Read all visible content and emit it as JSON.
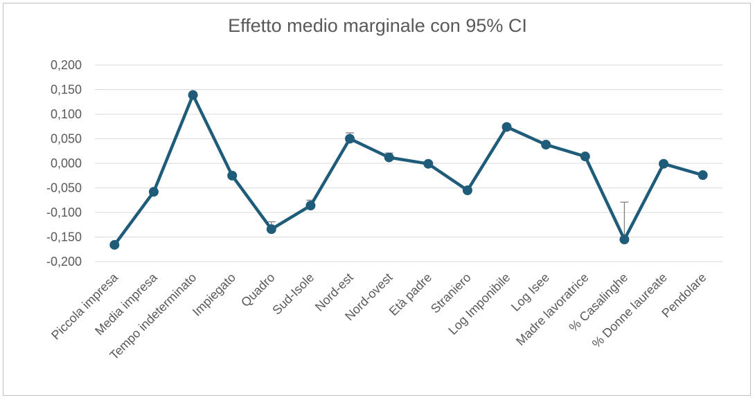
{
  "chart_data": {
    "type": "line",
    "title": "Effetto medio marginale con 95% CI",
    "xlabel": "",
    "ylabel": "",
    "ylim": [
      -0.2,
      0.2
    ],
    "yticks": [
      "0,200",
      "0,150",
      "0,100",
      "0,050",
      "0,000",
      "-0,050",
      "-0,100",
      "-0,150",
      "-0,200"
    ],
    "ytick_values": [
      0.2,
      0.15,
      0.1,
      0.05,
      0.0,
      -0.05,
      -0.1,
      -0.15,
      -0.2
    ],
    "grid": true,
    "legend": "none",
    "categories": [
      "Piccola impresa",
      "Media impresa",
      "Tempo indeterminato",
      "Impiegato",
      "Quadro",
      "Sud-Isole",
      "Nord-est",
      "Nord-ovest",
      "Età padre",
      "Straniero",
      "Log Imponibile",
      "Log Isee",
      "Madre lavoratrice",
      "% Casalinghe",
      "% Donne laureate",
      "Pendolare"
    ],
    "values": [
      -0.166,
      -0.058,
      0.139,
      -0.025,
      -0.134,
      -0.086,
      0.05,
      0.012,
      -0.001,
      -0.055,
      0.074,
      0.038,
      0.014,
      -0.155,
      -0.001,
      -0.024
    ],
    "ci_upper": [
      -0.166,
      -0.058,
      0.139,
      -0.025,
      -0.119,
      -0.075,
      0.062,
      0.021,
      -0.001,
      -0.055,
      0.074,
      0.038,
      0.014,
      -0.079,
      -0.001,
      -0.024
    ],
    "ci_lower": [
      -0.166,
      -0.058,
      0.139,
      -0.025,
      -0.134,
      -0.086,
      0.05,
      0.012,
      -0.001,
      -0.055,
      0.074,
      0.038,
      0.014,
      -0.155,
      -0.001,
      -0.024
    ],
    "colors": {
      "line": "#1f5c7a",
      "errorbar": "#7f7f7f",
      "grid": "#d9d9d9",
      "text": "#595959"
    }
  }
}
